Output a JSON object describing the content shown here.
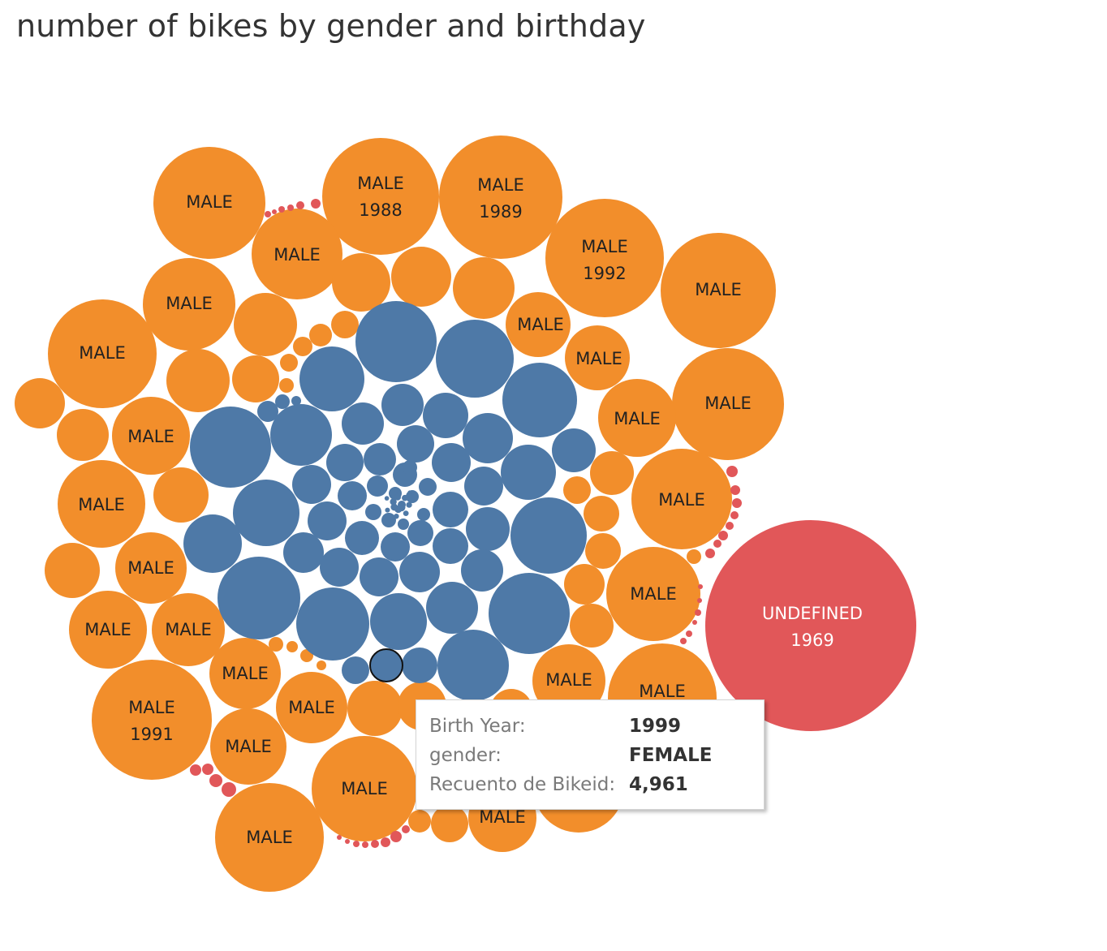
{
  "title": "number of bikes by gender and birthday",
  "colors": {
    "MALE": "#f28e2b",
    "FEMALE": "#4e79a7",
    "UNDEFINED": "#e15759",
    "label_dark": "#222222",
    "label_light": "#ffffff"
  },
  "chart_data": {
    "type": "bubble",
    "measure": "Recuento de Bikeid",
    "dimensions": [
      "gender",
      "Birth Year"
    ],
    "labeled_bubbles": [
      {
        "gender": "UNDEFINED",
        "year": "1969"
      },
      {
        "gender": "MALE",
        "year": "1988"
      },
      {
        "gender": "MALE",
        "year": "1989"
      },
      {
        "gender": "MALE",
        "year": "1991"
      },
      {
        "gender": "MALE",
        "year": "1992"
      }
    ],
    "highlighted": {
      "gender": "FEMALE",
      "year": "1999",
      "count": "4,961"
    }
  },
  "tooltip": {
    "rows": [
      {
        "key": "Birth Year:",
        "value": "1999"
      },
      {
        "key": "gender:",
        "value": "FEMALE"
      },
      {
        "key": "Recuento de Bikeid:",
        "value": "4,961"
      }
    ]
  }
}
